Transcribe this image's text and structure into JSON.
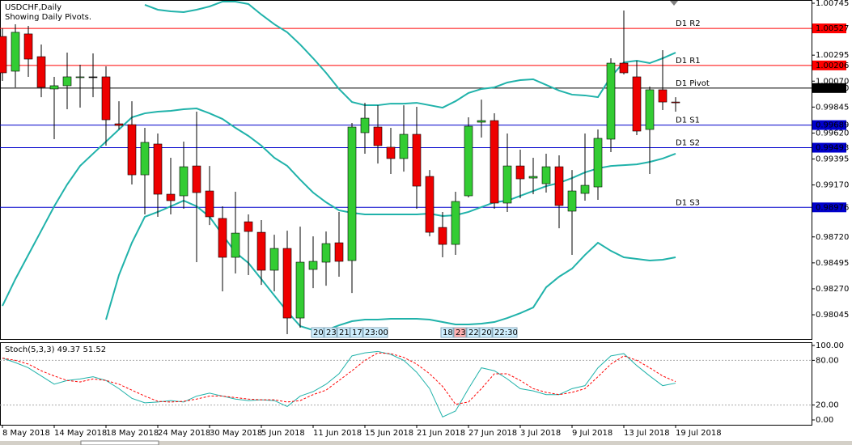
{
  "chart_data": [
    {
      "type": "candlestick",
      "title": "USDCHF,Daily",
      "subtitle": "Showing Daily Pivots.",
      "categories": [
        "8 May 2018",
        null,
        null,
        null,
        "14 May 2018",
        null,
        null,
        null,
        "18 May 2018",
        null,
        null,
        null,
        "24 May 2018",
        null,
        null,
        null,
        "30 May 2018",
        null,
        null,
        null,
        "5 Jun 2018",
        null,
        null,
        null,
        "11 Jun 2018",
        null,
        null,
        null,
        "15 Jun 2018",
        null,
        null,
        null,
        "21 Jun 2018",
        null,
        null,
        null,
        "27 Jun 2018",
        null,
        null,
        null,
        "3 Jul 2018",
        null,
        null,
        null,
        "9 Jul 2018",
        null,
        null,
        null,
        "13 Jul 2018",
        null,
        null,
        null,
        "19 Jul 2018"
      ],
      "open": [
        1.00457,
        1.00156,
        1.00479,
        1.00282,
        1.00002,
        1.0003,
        1.00103,
        1.00107,
        1.00107,
        0.997,
        0.99693,
        0.99258,
        0.99525,
        0.9909,
        0.99076,
        0.99335,
        0.99118,
        0.9888,
        0.98543,
        0.98851,
        0.9876,
        0.98431,
        0.9862,
        0.98017,
        0.98438,
        0.98501,
        0.98669,
        0.98515,
        0.99623,
        0.99672,
        0.99497,
        0.99399,
        0.99609,
        0.99244,
        0.98802,
        0.98655,
        0.99076,
        0.99714,
        0.99728,
        0.99013,
        0.99335,
        0.9923,
        0.99181,
        0.99328,
        0.98943,
        0.99097,
        0.99153,
        0.99567,
        1.00226,
        1.00107,
        0.99651,
        0.99995,
        0.99889
      ],
      "high": [
        1.00528,
        1.00563,
        1.00549,
        1.00387,
        1.00107,
        1.00317,
        1.00212,
        1.0031,
        1.00198,
        0.99896,
        0.99896,
        0.99665,
        0.99616,
        0.99406,
        0.99546,
        0.99805,
        0.99335,
        0.98985,
        0.99111,
        0.98915,
        0.98866,
        0.98739,
        0.98774,
        0.98809,
        0.98725,
        0.98767,
        0.98936,
        0.99707,
        0.99882,
        0.99861,
        0.99665,
        0.99861,
        0.99847,
        0.993,
        0.98936,
        0.99111,
        0.99756,
        0.9991,
        0.99791,
        0.99616,
        0.99476,
        0.99406,
        0.99441,
        0.99427,
        0.993,
        0.99616,
        0.99651,
        1.00268,
        1.00682,
        1.00247,
        1.00023,
        1.00338,
        0.99931
      ],
      "low": [
        1.00072,
        1.00016,
        1.00107,
        0.99931,
        0.99567,
        0.99826,
        0.9984,
        0.99931,
        0.99511,
        0.99651,
        0.99174,
        0.98915,
        0.98894,
        0.98915,
        0.98964,
        0.98501,
        0.98823,
        0.98248,
        0.98403,
        0.98389,
        0.98304,
        0.98248,
        0.97877,
        0.97933,
        0.98276,
        0.98297,
        0.98375,
        0.98234,
        0.99441,
        0.99356,
        0.99265,
        0.99286,
        0.98964,
        0.98725,
        0.98543,
        0.98564,
        0.99062,
        0.99581,
        0.98964,
        0.98936,
        0.99055,
        0.9909,
        0.99104,
        0.98795,
        0.98564,
        0.99034,
        0.99041,
        0.99455,
        1.00128,
        0.99602,
        0.99265,
        0.99819,
        0.99805
      ],
      "close": [
        1.00142,
        1.00493,
        1.00261,
        1.00016,
        1.0003,
        1.00107,
        1.00107,
        1.00107,
        0.99735,
        0.99686,
        0.99258,
        0.99539,
        0.9909,
        0.99034,
        0.99328,
        0.99104,
        0.98894,
        0.98543,
        0.98753,
        0.98767,
        0.98431,
        0.9862,
        0.98017,
        0.98501,
        0.98508,
        0.98662,
        0.98508,
        0.99672,
        0.99749,
        0.99511,
        0.99399,
        0.99609,
        0.9916,
        0.9876,
        0.98655,
        0.99027,
        0.99679,
        0.99728,
        0.99013,
        0.99335,
        0.99223,
        0.99244,
        0.99328,
        0.98992,
        0.99118,
        0.99167,
        0.99574,
        1.00226,
        1.00142,
        0.99637,
        0.99995,
        0.99889,
        0.99882
      ],
      "up_color": "#33cc33",
      "down_color": "#ee0000",
      "bands": {
        "color": "#20b2aa",
        "upper": [
          null,
          null,
          null,
          null,
          null,
          null,
          null,
          null,
          null,
          null,
          null,
          1.00731,
          1.00689,
          1.00675,
          1.00668,
          1.00689,
          1.00717,
          1.00759,
          1.00759,
          1.00738,
          1.00647,
          1.00563,
          1.00493,
          1.00387,
          1.00268,
          1.00142,
          1.00002,
          0.99889,
          0.99861,
          0.99861,
          0.99875,
          0.99875,
          0.99882,
          0.99861,
          0.9984,
          0.99896,
          0.99967,
          1.00002,
          1.00016,
          1.00058,
          1.00079,
          1.00086,
          1.00037,
          0.99988,
          0.99953,
          0.99946,
          0.99931,
          1.00107,
          1.00233,
          1.00247,
          1.00226,
          1.00268,
          1.00317
        ],
        "middle": [
          0.98122,
          0.98354,
          0.98564,
          0.98774,
          0.98985,
          0.99174,
          0.99335,
          0.99441,
          0.99546,
          0.99651,
          0.99756,
          0.99791,
          0.99805,
          0.99812,
          0.99826,
          0.99833,
          0.99791,
          0.99742,
          0.99665,
          0.99595,
          0.99511,
          0.99406,
          0.99335,
          0.99216,
          0.99104,
          0.9902,
          0.9895,
          0.98929,
          0.98915,
          0.98915,
          0.98915,
          0.98915,
          0.98915,
          0.98922,
          0.98901,
          0.98908,
          0.98936,
          0.98978,
          0.9902,
          0.99034,
          0.99076,
          0.99118,
          0.9916,
          0.99188,
          0.9923,
          0.99279,
          0.99314,
          0.99335,
          0.99342,
          0.99349,
          0.9937,
          0.99399,
          0.99441
        ],
        "lower": [
          null,
          null,
          null,
          null,
          null,
          null,
          null,
          null,
          0.98003,
          0.98389,
          0.98669,
          0.98894,
          0.98936,
          0.98985,
          0.99034,
          0.98985,
          0.98894,
          0.98739,
          0.98585,
          0.98494,
          0.98354,
          0.98213,
          0.98073,
          0.97947,
          0.97912,
          0.97912,
          0.97954,
          0.97989,
          0.98003,
          0.98003,
          0.9801,
          0.9801,
          0.9801,
          0.98003,
          0.97982,
          0.97961,
          0.97961,
          0.97968,
          0.97982,
          0.98017,
          0.98059,
          0.98108,
          0.98283,
          0.98375,
          0.98445,
          0.98564,
          0.98669,
          0.98599,
          0.98543,
          0.98529,
          0.98515,
          0.98522,
          0.98543
        ]
      },
      "pivots": [
        {
          "name": "D1 R2",
          "value": 1.00527,
          "color": "#ff0000"
        },
        {
          "name": "D1 R1",
          "value": 1.00206,
          "color": "#ff0000"
        },
        {
          "name": "D1 Pivot",
          "value": 1.0001,
          "label": "1.00010",
          "color": "#000000"
        },
        {
          "name": "D1 S1",
          "value": 0.99689,
          "color": "#0000cc"
        },
        {
          "name": "D1 S2",
          "value": 0.99493,
          "color": "#0000cc"
        },
        {
          "name": "D1 S3",
          "value": 0.98976,
          "color": "#0000cc"
        }
      ],
      "session_labels": [
        "20:",
        "23:",
        "21:",
        "17:",
        "23:00",
        "18:",
        "23:",
        "22:",
        "20:",
        "22:30"
      ],
      "ylim": [
        0.97842,
        1.00773
      ],
      "yticks": [
        1.00745,
        1.00295,
        {
          "value": 1.0007,
          "label": "1.00070"
        },
        0.99845,
        {
          "value": 0.9962,
          "label": "0.99620"
        },
        0.99395,
        {
          "value": 0.9917,
          "label": "0.99170"
        },
        {
          "value": 0.9872,
          "label": "0.98720"
        },
        0.98495,
        {
          "value": 0.9827,
          "label": "0.98270"
        },
        0.98045
      ],
      "grid": false
    },
    {
      "type": "line",
      "title": "Stoch(5,3,3) 49.37 51.52",
      "series": [
        {
          "color": "#20b2aa",
          "values": [
            83,
            77,
            70,
            59,
            48,
            53,
            55,
            58,
            53,
            42,
            29,
            23,
            24,
            26,
            24,
            32,
            36,
            32,
            28,
            26,
            27,
            26,
            18,
            32,
            38,
            48,
            62,
            86,
            90,
            92,
            88,
            80,
            64,
            42,
            4,
            12,
            42,
            70,
            66,
            55,
            42,
            39,
            34,
            34,
            42,
            46,
            70,
            86,
            89,
            73,
            59,
            46,
            49.37
          ]
        },
        {
          "color": "#ff0000",
          "dashed": true,
          "values": [
            83,
            80,
            75,
            66,
            59,
            53,
            51,
            55,
            53,
            48,
            40,
            32,
            25,
            24,
            25,
            28,
            32,
            32,
            30,
            28,
            27,
            27,
            24,
            26,
            34,
            40,
            53,
            66,
            80,
            90,
            89,
            84,
            75,
            62,
            45,
            21,
            24,
            42,
            62,
            62,
            53,
            42,
            37,
            34,
            37,
            42,
            58,
            75,
            86,
            80,
            70,
            59,
            51.52
          ]
        }
      ],
      "levels": [
        80,
        20
      ],
      "ylim": [
        -6.5,
        104.3
      ],
      "yticks": [
        {
          "value": 100,
          "label": "100.00"
        },
        {
          "value": 80,
          "label": "80.00"
        },
        {
          "value": 20,
          "label": "20.00"
        },
        {
          "value": 0,
          "label": "0.00"
        }
      ]
    }
  ]
}
